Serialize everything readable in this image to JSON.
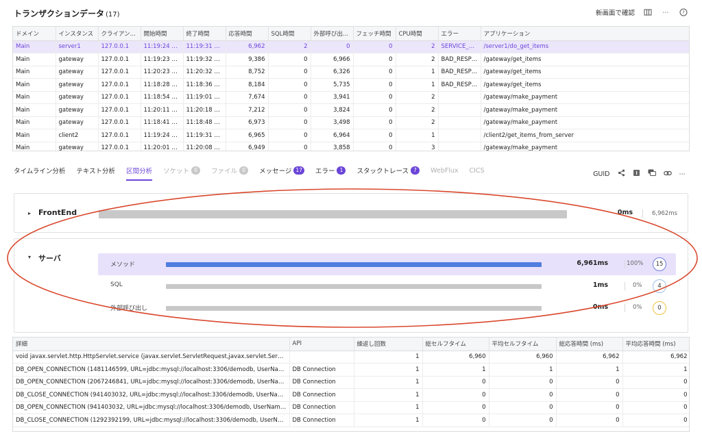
{
  "header": {
    "title": "トランザクションデータ",
    "count": "(17)",
    "new_window_label": "新画面で確認"
  },
  "transactions": {
    "columns": [
      "ドメイン",
      "インスタンス",
      "クライアン...",
      "開始時間",
      "終了時間",
      "応答時間",
      "SQL時間",
      "外部呼び出...",
      "フェッチ時間",
      "CPU時間",
      "エラー",
      "アプリケーション"
    ],
    "rows": [
      [
        "Main",
        "server1",
        "127.0.0.1",
        "11:19:24 682",
        "11:19:31 644",
        "6,962",
        "2",
        "0",
        "0",
        "2",
        "SERVICE_EX...",
        "/server1/do_get_items"
      ],
      [
        "Main",
        "gateway",
        "127.0.0.1",
        "11:19:23 583",
        "11:19:32 969",
        "9,386",
        "0",
        "6,966",
        "0",
        "2",
        "BAD_RESPO...",
        "/gateway/get_items"
      ],
      [
        "Main",
        "gateway",
        "127.0.0.1",
        "11:20:23 745",
        "11:20:32 497",
        "8,752",
        "0",
        "6,326",
        "0",
        "1",
        "BAD_RESPO...",
        "/gateway/get_items"
      ],
      [
        "Main",
        "gateway",
        "127.0.0.1",
        "11:18:28 723",
        "11:18:36 907",
        "8,184",
        "0",
        "5,735",
        "0",
        "1",
        "BAD_RESPO...",
        "/gateway/get_items"
      ],
      [
        "Main",
        "gateway",
        "127.0.0.1",
        "11:18:54 015",
        "11:19:01 689",
        "7,674",
        "0",
        "3,941",
        "0",
        "2",
        "",
        "/gateway/make_payment"
      ],
      [
        "Main",
        "gateway",
        "127.0.0.1",
        "11:20:11 742",
        "11:20:18 954",
        "7,212",
        "0",
        "3,824",
        "0",
        "2",
        "",
        "/gateway/make_payment"
      ],
      [
        "Main",
        "gateway",
        "127.0.0.1",
        "11:18:41 727",
        "11:18:48 700",
        "6,973",
        "0",
        "3,498",
        "0",
        "2",
        "",
        "/gateway/make_payment"
      ],
      [
        "Main",
        "client2",
        "127.0.0.1",
        "11:19:24 681",
        "11:19:31 646",
        "6,965",
        "0",
        "6,964",
        "0",
        "1",
        "",
        "/client2/get_items_from_server"
      ],
      [
        "Main",
        "gateway",
        "127.0.0.1",
        "11:20:01 740",
        "11:20:08 689",
        "6,949",
        "0",
        "3,858",
        "0",
        "3",
        "",
        "/gateway/make_payment"
      ]
    ]
  },
  "tabs": [
    {
      "label": "タイムライン分析",
      "state": "normal"
    },
    {
      "label": "テキスト分析",
      "state": "normal"
    },
    {
      "label": "区間分析",
      "state": "active"
    },
    {
      "label": "ソケット",
      "state": "disabled",
      "badge": "0"
    },
    {
      "label": "ファイル",
      "state": "disabled",
      "badge": "0"
    },
    {
      "label": "メッセージ",
      "state": "normal",
      "badge": "17"
    },
    {
      "label": "エラー",
      "state": "normal",
      "badge": "1"
    },
    {
      "label": "スタックトレース",
      "state": "normal",
      "badge": "7"
    },
    {
      "label": "WebFlux",
      "state": "disabled"
    },
    {
      "label": "CICS",
      "state": "disabled"
    }
  ],
  "tabs_right": {
    "guid_label": "GUID"
  },
  "frontend": {
    "label": "FrontEnd",
    "value": "0ms",
    "total": "6,962ms"
  },
  "server": {
    "label": "サーバ",
    "rows": [
      {
        "label": "メソッド",
        "value": "6,961ms",
        "pct": "100%",
        "count": "15",
        "fill": 1.0
      },
      {
        "label": "SQL",
        "value": "1ms",
        "pct": "0%",
        "count": "4",
        "fill": 0
      },
      {
        "label": "外部呼び出し",
        "value": "0ms",
        "pct": "0%",
        "count": "0",
        "fill": 0
      }
    ]
  },
  "details": {
    "columns": [
      "詳細",
      "API",
      "繰返し回数",
      "総セルフタイム",
      "平均セルフタイム",
      "総応答時間 (ms)",
      "平均応答時間 (ms)"
    ],
    "rows": [
      [
        "void javax.servlet.http.HttpServlet.service (javax.servlet.ServletRequest,javax.servlet.ServletRespo...",
        "",
        "1",
        "6,960",
        "6,960",
        "6,962",
        "6,962"
      ],
      [
        "DB_OPEN_CONNECTION (1481146599, URL=jdbc:mysql://localhost:3306/demodb, UserName=roo...",
        "DB Connection",
        "1",
        "1",
        "1",
        "1",
        "1"
      ],
      [
        "DB_OPEN_CONNECTION (2067246841, URL=jdbc:mysql://localhost:3306/demodb, UserName=roo...",
        "DB Connection",
        "1",
        "0",
        "0",
        "0",
        "0"
      ],
      [
        "DB_CLOSE_CONNECTION (941403032, URL=jdbc:mysql://localhost:3306/demodb, UserName=ro...",
        "DB Connection",
        "1",
        "0",
        "0",
        "0",
        "0"
      ],
      [
        "DB_OPEN_CONNECTION (941403032, URL=jdbc:mysql://localhost:3306/demodb, UserName=root...",
        "DB Connection",
        "1",
        "0",
        "0",
        "0",
        "0"
      ],
      [
        "DB_CLOSE_CONNECTION (1292392199, URL=jdbc:mysql://localhost:3306/demodb, UserName=ro...",
        "DB Connection",
        "1",
        "0",
        "0",
        "0",
        "0"
      ]
    ]
  },
  "colors": {
    "accent": "#6b45d8",
    "annotation": "#d9472b",
    "bar_blue": "#4f7de0"
  }
}
